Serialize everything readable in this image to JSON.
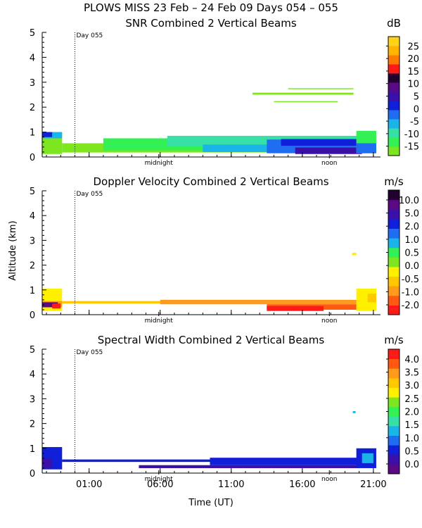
{
  "figure": {
    "title": "PLOWS MISS  23 Feb – 24 Feb 09 Days 054 – 055",
    "xlabel": "Time (UT)",
    "ylabel": "Altitude (km)",
    "day_marker": "Day 055",
    "midnight_label": "midnight",
    "noon_label": "noon"
  },
  "chart_data": [
    {
      "type": "heatmap",
      "title": "SNR Combined 2 Vertical Beams",
      "unit": "dB",
      "xlabel": "Time (UT)",
      "ylabel": "Altitude (km)",
      "ylim": [
        0,
        5
      ],
      "yticks": [
        "0",
        "1",
        "2",
        "3",
        "4",
        "5"
      ],
      "xlim_hours": [
        -2.3,
        21.5
      ],
      "xticks": [
        "01:00",
        "06:00",
        "11:00",
        "16:00",
        "21:00"
      ],
      "xtick_hours": [
        1,
        6,
        11,
        16,
        21
      ],
      "colorbar": {
        "labels": [
          "-15",
          "-10",
          "-5",
          "0",
          "5",
          "10",
          "15",
          "20",
          "25"
        ],
        "colors": [
          "#7de61f",
          "#33f055",
          "#36e0a6",
          "#1ab4e8",
          "#1f6df0",
          "#1020d8",
          "#3a10a8",
          "#5b0a86",
          "#220030",
          "#ff1a1a",
          "#ff7a00",
          "#ffb400",
          "#ffd21a"
        ]
      },
      "regions": [
        {
          "t0": -2.3,
          "t1": -0.9,
          "z0": 0.12,
          "z1": 1.0,
          "color": "#7de61f"
        },
        {
          "t0": -2.3,
          "t1": -0.9,
          "z0": 0.75,
          "z1": 1.0,
          "color": "#1ab4e8"
        },
        {
          "t0": -2.3,
          "t1": -1.6,
          "z0": 0.8,
          "z1": 1.0,
          "color": "#1020d8"
        },
        {
          "t0": -0.9,
          "t1": 20.2,
          "z0": 0.18,
          "z1": 0.55,
          "color": "#7de61f"
        },
        {
          "t0": 2.0,
          "t1": 20.2,
          "z0": 0.25,
          "z1": 0.75,
          "color": "#33f055"
        },
        {
          "t0": 6.5,
          "t1": 20.2,
          "z0": 0.45,
          "z1": 0.85,
          "color": "#36e0a6"
        },
        {
          "t0": 9.0,
          "t1": 20.2,
          "z0": 0.2,
          "z1": 0.5,
          "color": "#1ab4e8"
        },
        {
          "t0": 13.5,
          "t1": 20.2,
          "z0": 0.15,
          "z1": 0.7,
          "color": "#1f6df0"
        },
        {
          "t0": 14.5,
          "t1": 20.2,
          "z0": 0.45,
          "z1": 0.72,
          "color": "#1020d8"
        },
        {
          "t0": 15.5,
          "t1": 20.2,
          "z0": 0.12,
          "z1": 0.38,
          "color": "#3a10a8"
        },
        {
          "t0": 19.8,
          "t1": 21.2,
          "z0": 0.15,
          "z1": 1.05,
          "color": "#33f055"
        },
        {
          "t0": 19.8,
          "t1": 21.2,
          "z0": 0.15,
          "z1": 0.55,
          "color": "#1f6df0"
        },
        {
          "t0": 12.5,
          "t1": 19.6,
          "z0": 2.5,
          "z1": 2.58,
          "color": "#7de61f"
        },
        {
          "t0": 15.0,
          "t1": 19.6,
          "z0": 2.72,
          "z1": 2.76,
          "color": "#7de61f"
        },
        {
          "t0": 14.0,
          "t1": 18.5,
          "z0": 2.2,
          "z1": 2.24,
          "color": "#7de61f"
        }
      ]
    },
    {
      "type": "heatmap",
      "title": "Doppler Velocity Combined 2 Vertical Beams",
      "unit": "m/s",
      "xlabel": "Time (UT)",
      "ylabel": "Altitude (km)",
      "ylim": [
        0,
        5
      ],
      "yticks": [
        "0",
        "1",
        "2",
        "3",
        "4",
        "5"
      ],
      "xlim_hours": [
        -2.3,
        21.5
      ],
      "xticks": [
        "01:00",
        "06:00",
        "11:00",
        "16:00",
        "21:00"
      ],
      "xtick_hours": [
        1,
        6,
        11,
        16,
        21
      ],
      "colorbar": {
        "labels": [
          "-2.0",
          "-1.0",
          "-0.5",
          "0.0",
          "0.5",
          "1.0",
          "2.0",
          "5.0",
          "10.0"
        ],
        "colors": [
          "#ff1a1a",
          "#ff5a10",
          "#ff9a1a",
          "#ffc800",
          "#fff000",
          "#7de61f",
          "#33f055",
          "#1ab4e8",
          "#1f6df0",
          "#1020d8",
          "#3a10a8",
          "#5b0a86",
          "#220030"
        ]
      },
      "regions": [
        {
          "t0": -2.3,
          "t1": -0.9,
          "z0": 0.15,
          "z1": 1.05,
          "color": "#fff000"
        },
        {
          "t0": -2.3,
          "t1": -0.9,
          "z0": 0.3,
          "z1": 0.55,
          "color": "#ff9a1a"
        },
        {
          "t0": -2.3,
          "t1": -1.2,
          "z0": 0.3,
          "z1": 0.5,
          "color": "#5b0a86"
        },
        {
          "t0": -1.6,
          "t1": -1.0,
          "z0": 0.25,
          "z1": 0.45,
          "color": "#ff1a1a"
        },
        {
          "t0": -0.9,
          "t1": 20.0,
          "z0": 0.45,
          "z1": 0.55,
          "color": "#ffc800"
        },
        {
          "t0": 6.0,
          "t1": 20.0,
          "z0": 0.42,
          "z1": 0.6,
          "color": "#ff9a1a"
        },
        {
          "t0": 13.5,
          "t1": 20.0,
          "z0": 0.2,
          "z1": 0.42,
          "color": "#ff5a10"
        },
        {
          "t0": 13.5,
          "t1": 17.5,
          "z0": 0.15,
          "z1": 0.35,
          "color": "#ff1a1a"
        },
        {
          "t0": 19.8,
          "t1": 21.2,
          "z0": 0.15,
          "z1": 1.05,
          "color": "#fff000"
        },
        {
          "t0": 20.6,
          "t1": 21.2,
          "z0": 0.5,
          "z1": 0.85,
          "color": "#ffc800"
        },
        {
          "t0": 19.5,
          "t1": 19.8,
          "z0": 2.4,
          "z1": 2.5,
          "color": "#fff000"
        }
      ]
    },
    {
      "type": "heatmap",
      "title": "Spectral Width Combined 2 Vertical Beams",
      "unit": "m/s",
      "xlabel": "Time (UT)",
      "ylabel": "Altitude (km)",
      "ylim": [
        0,
        5
      ],
      "yticks": [
        "0",
        "1",
        "2",
        "3",
        "4",
        "5"
      ],
      "xlim_hours": [
        -2.3,
        21.5
      ],
      "xticks": [
        "01:00",
        "06:00",
        "11:00",
        "16:00",
        "21:00"
      ],
      "xtick_hours": [
        1,
        6,
        11,
        16,
        21
      ],
      "colorbar": {
        "labels": [
          "0.0",
          "0.5",
          "1.0",
          "1.5",
          "2.0",
          "2.5",
          "3.0",
          "3.5",
          "4.0"
        ],
        "colors": [
          "#5b0a86",
          "#3a10a8",
          "#1020d8",
          "#1f6df0",
          "#1ab4e8",
          "#36e0a6",
          "#33f055",
          "#7de61f",
          "#fff000",
          "#ffc800",
          "#ff9a1a",
          "#ff5a10",
          "#ff1a1a"
        ]
      },
      "regions": [
        {
          "t0": -2.3,
          "t1": -0.9,
          "z0": 0.15,
          "z1": 1.05,
          "color": "#1020d8"
        },
        {
          "t0": -2.3,
          "t1": -1.6,
          "z0": 0.2,
          "z1": 0.6,
          "color": "#3a10a8"
        },
        {
          "t0": -0.9,
          "t1": 20.0,
          "z0": 0.45,
          "z1": 0.55,
          "color": "#1020d8"
        },
        {
          "t0": 4.5,
          "t1": 20.0,
          "z0": 0.2,
          "z1": 0.32,
          "color": "#3a10a8"
        },
        {
          "t0": 9.5,
          "t1": 20.0,
          "z0": 0.32,
          "z1": 0.62,
          "color": "#1020d8"
        },
        {
          "t0": 19.8,
          "t1": 21.2,
          "z0": 0.2,
          "z1": 1.0,
          "color": "#1020d8"
        },
        {
          "t0": 20.2,
          "t1": 21.0,
          "z0": 0.4,
          "z1": 0.8,
          "color": "#1ab4e8"
        },
        {
          "t0": 19.55,
          "t1": 19.75,
          "z0": 2.42,
          "z1": 2.5,
          "color": "#1ab4e8"
        }
      ]
    }
  ]
}
